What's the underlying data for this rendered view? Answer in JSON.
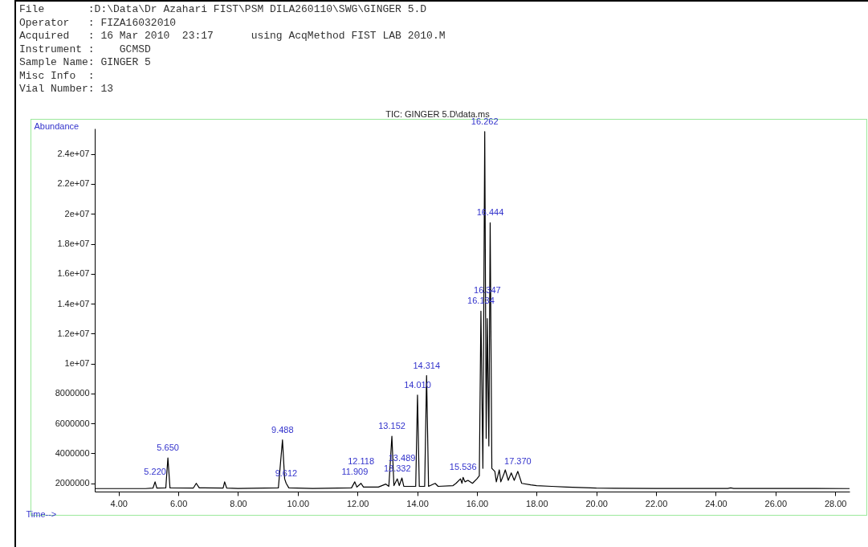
{
  "chart_data": {
    "type": "line",
    "title": "TIC: GINGER 5.D\\data.ms",
    "xlabel": "Time-->",
    "ylabel": "Abundance",
    "x": [
      3.2,
      4.0,
      4.9,
      5.15,
      5.22,
      5.28,
      5.58,
      5.65,
      5.72,
      6.5,
      6.6,
      6.7,
      7.5,
      7.55,
      7.62,
      8.0,
      9.35,
      9.488,
      9.56,
      9.612,
      9.7,
      10.5,
      11.8,
      11.909,
      11.98,
      12.118,
      12.2,
      12.7,
      12.95,
      13.05,
      13.152,
      13.22,
      13.332,
      13.4,
      13.489,
      13.55,
      13.95,
      14.01,
      14.07,
      14.25,
      14.314,
      14.38,
      14.6,
      14.7,
      15.2,
      15.3,
      15.45,
      15.5,
      15.536,
      15.6,
      15.7,
      15.85,
      16.0,
      16.08,
      16.134,
      16.2,
      16.262,
      16.31,
      16.347,
      16.4,
      16.444,
      16.5,
      16.6,
      16.65,
      16.75,
      16.8,
      16.9,
      16.95,
      17.05,
      17.15,
      17.25,
      17.37,
      17.5,
      17.8,
      18.0,
      18.5,
      19.0,
      20.0,
      22.0,
      24.4,
      24.5,
      24.6,
      28.48
    ],
    "series": [
      {
        "color": "#000000",
        "values": [
          1650000,
          1650000,
          1650000,
          1680000,
          2100000,
          1680000,
          1700000,
          3700000,
          1700000,
          1680000,
          2000000,
          1700000,
          1680000,
          2100000,
          1680000,
          1660000,
          1700000,
          4900000,
          2300000,
          2000000,
          1700000,
          1660000,
          1700000,
          2100000,
          1750000,
          2000000,
          1750000,
          1750000,
          1950000,
          1800000,
          5150000,
          1850000,
          2300000,
          1850000,
          2360000,
          1800000,
          1800000,
          7900000,
          1800000,
          1800000,
          9200000,
          1800000,
          2000000,
          1800000,
          1850000,
          2000000,
          2300000,
          2000000,
          2400000,
          2100000,
          2200000,
          2000000,
          2300000,
          2500000,
          13500000,
          3000000,
          25500000,
          5000000,
          13000000,
          4500000,
          19400000,
          3000000,
          2800000,
          2100000,
          2900000,
          2100000,
          2600000,
          2900000,
          2200000,
          2700000,
          2200000,
          2800000,
          2000000,
          1900000,
          1850000,
          1800000,
          1750000,
          1680000,
          1660000,
          1660000,
          1700000,
          1660000,
          1650000
        ]
      }
    ],
    "xlim": [
      3.2,
      28.48
    ],
    "ylim": [
      1450000,
      25700000
    ],
    "xticks": [
      {
        "value": 4,
        "label": "4.00"
      },
      {
        "value": 6,
        "label": "6.00"
      },
      {
        "value": 8,
        "label": "8.00"
      },
      {
        "value": 10,
        "label": "10.00"
      },
      {
        "value": 12,
        "label": "12.00"
      },
      {
        "value": 14,
        "label": "14.00"
      },
      {
        "value": 16,
        "label": "16.00"
      },
      {
        "value": 18,
        "label": "18.00"
      },
      {
        "value": 20,
        "label": "20.00"
      },
      {
        "value": 22,
        "label": "22.00"
      },
      {
        "value": 24,
        "label": "24.00"
      },
      {
        "value": 26,
        "label": "26.00"
      },
      {
        "value": 28,
        "label": "28.00"
      }
    ],
    "yticks": [
      2000000,
      4000000,
      6000000,
      8000000,
      {
        "value": 10000000,
        "label": "1e+07"
      },
      {
        "value": 12000000,
        "label": "1.2e+07"
      },
      {
        "value": 14000000,
        "label": "1.4e+07"
      },
      {
        "value": 16000000,
        "label": "1.6e+07"
      },
      {
        "value": 18000000,
        "label": "1.8e+07"
      },
      {
        "value": 20000000,
        "label": "2e+07"
      },
      {
        "value": 22000000,
        "label": "2.2e+07"
      },
      {
        "value": 24000000,
        "label": "2.4e+07"
      }
    ],
    "annotations": [
      "File       :D:\\Data\\Dr Azahari FIST\\PSM DILA260110\\SWG\\GINGER 5.D",
      "Operator   : FIZA16032010",
      "Acquired   : 16 Mar 2010  23:17      using AcqMethod FIST LAB 2010.M",
      "Instrument :    GCMSD",
      "Sample Name: GINGER 5",
      "Misc Info  :",
      "Vial Number: 13",
      {
        "text": "5.220",
        "x": 5.22,
        "y": 2100000
      },
      {
        "text": "5.650",
        "x": 5.65,
        "y": 3700000
      },
      {
        "text": "9.488",
        "x": 9.488,
        "y": 4900000
      },
      {
        "text": "9.612",
        "x": 9.612,
        "y": 2000000
      },
      {
        "text": "11.909",
        "x": 11.909,
        "y": 2100000
      },
      {
        "text": "12.118",
        "x": 12.118,
        "y": 2000000
      },
      {
        "text": "13.152",
        "x": 13.152,
        "y": 5150000
      },
      {
        "text": "13.332",
        "x": 13.332,
        "y": 2300000
      },
      {
        "text": "13.489",
        "x": 13.489,
        "y": 2360000
      },
      {
        "text": "14.010",
        "x": 14.01,
        "y": 7900000
      },
      {
        "text": "14.314",
        "x": 14.314,
        "y": 9200000
      },
      {
        "text": "15.536",
        "x": 15.536,
        "y": 2400000
      },
      {
        "text": "16.134",
        "x": 16.134,
        "y": 13500000
      },
      {
        "text": "16.262",
        "x": 16.262,
        "y": 25500000
      },
      {
        "text": "16.347",
        "x": 16.347,
        "y": 13000000
      },
      {
        "text": "16.444",
        "x": 16.444,
        "y": 19400000
      },
      {
        "text": "17.370",
        "x": 17.37,
        "y": 2800000
      }
    ]
  }
}
